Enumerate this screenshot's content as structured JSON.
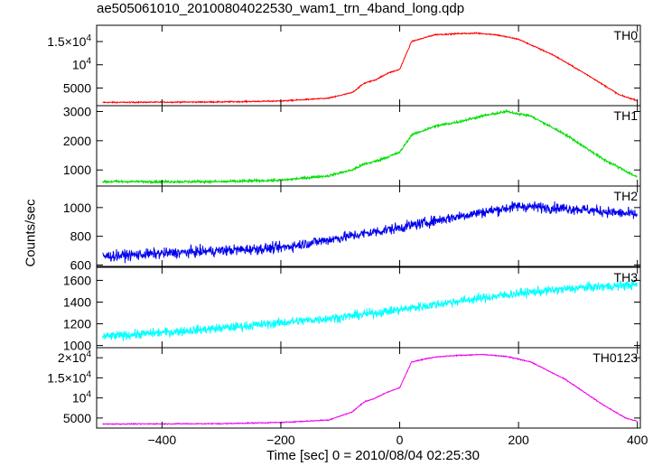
{
  "chart_data": {
    "type": "line",
    "title": "ae505061010_20100804022530_wam1_trn_4band_long.qdp",
    "xlabel": "Time [sec] 0 = 2010/08/04 02:25:30",
    "ylabel": "Counts/sec",
    "xlim": [
      -510,
      405
    ],
    "xticks": [
      -400,
      -200,
      0,
      200,
      400
    ],
    "xtick_labels": [
      "−400",
      "−200",
      "0",
      "200",
      "400"
    ],
    "panels": [
      {
        "name": "TH0",
        "color": "#ff0000",
        "ylim": [
          1200,
          18500
        ],
        "yticks": [
          {
            "value": 5000,
            "label": "5000",
            "sup": ""
          },
          {
            "value": 10000,
            "label": "10",
            "sup": "4"
          },
          {
            "value": 15000,
            "label": "1.5×10",
            "sup": "4"
          }
        ],
        "noise": 120,
        "x": [
          -500,
          -300,
          -200,
          -120,
          -80,
          -60,
          -40,
          -20,
          0,
          20,
          60,
          100,
          130,
          160,
          200,
          260,
          320,
          370,
          400
        ],
        "y": [
          1900,
          2000,
          2200,
          2800,
          4000,
          6000,
          6800,
          8200,
          9000,
          15000,
          16500,
          16700,
          16800,
          16500,
          15500,
          12000,
          7500,
          3500,
          2300
        ]
      },
      {
        "name": "TH1",
        "color": "#00dd00",
        "ylim": [
          450,
          3200
        ],
        "yticks": [
          {
            "value": 1000,
            "label": "1000",
            "sup": ""
          },
          {
            "value": 2000,
            "label": "2000",
            "sup": ""
          },
          {
            "value": 3000,
            "label": "3000",
            "sup": ""
          }
        ],
        "noise": 40,
        "x": [
          -500,
          -300,
          -200,
          -120,
          -80,
          -60,
          -40,
          -20,
          0,
          20,
          60,
          100,
          140,
          180,
          220,
          280,
          340,
          400
        ],
        "y": [
          600,
          600,
          650,
          800,
          1000,
          1200,
          1300,
          1450,
          1600,
          2200,
          2500,
          2650,
          2850,
          3000,
          2850,
          2200,
          1400,
          750
        ]
      },
      {
        "name": "TH2",
        "color": "#0000ee",
        "ylim": [
          590,
          1150
        ],
        "yticks": [
          {
            "value": 600,
            "label": "600",
            "sup": ""
          },
          {
            "value": 800,
            "label": "800",
            "sup": ""
          },
          {
            "value": 1000,
            "label": "1000",
            "sup": ""
          }
        ],
        "noise": 35,
        "x": [
          -500,
          -200,
          -100,
          0,
          100,
          200,
          300,
          400
        ],
        "y": [
          660,
          720,
          790,
          860,
          940,
          1010,
          990,
          950
        ]
      },
      {
        "name": "TH3",
        "color": "#00ffff",
        "ylim": [
          980,
          1720
        ],
        "yticks": [
          {
            "value": 1000,
            "label": "1000",
            "sup": ""
          },
          {
            "value": 1200,
            "label": "1200",
            "sup": ""
          },
          {
            "value": 1400,
            "label": "1400",
            "sup": ""
          },
          {
            "value": 1600,
            "label": "1600",
            "sup": ""
          }
        ],
        "noise": 40,
        "x": [
          -500,
          -300,
          -100,
          0,
          100,
          200,
          300,
          400
        ],
        "y": [
          1080,
          1160,
          1260,
          1330,
          1410,
          1480,
          1530,
          1560
        ]
      },
      {
        "name": "TH0123",
        "color": "#ee00ee",
        "ylim": [
          2500,
          22500
        ],
        "yticks": [
          {
            "value": 5000,
            "label": "5000",
            "sup": ""
          },
          {
            "value": 10000,
            "label": "10",
            "sup": "4"
          },
          {
            "value": 15000,
            "label": "1.5×10",
            "sup": "4"
          },
          {
            "value": 20000,
            "label": "2×10",
            "sup": "4"
          }
        ],
        "noise": 120,
        "x": [
          -500,
          -300,
          -200,
          -120,
          -80,
          -60,
          -40,
          -20,
          0,
          20,
          60,
          100,
          140,
          180,
          220,
          280,
          340,
          380,
          400
        ],
        "y": [
          3500,
          3600,
          3900,
          4500,
          6500,
          9000,
          10000,
          11500,
          12500,
          19000,
          20200,
          20600,
          20800,
          20300,
          19000,
          14500,
          8500,
          5000,
          4200
        ]
      }
    ]
  }
}
